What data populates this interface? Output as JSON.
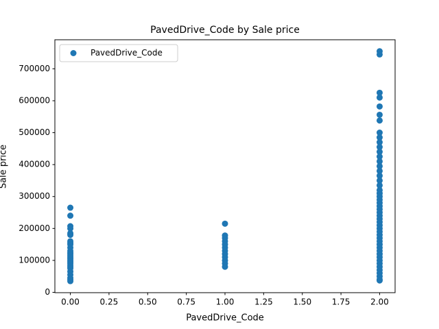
{
  "chart_data": {
    "type": "scatter",
    "title": "PavedDrive_Code by Sale price",
    "xlabel": "PavedDrive_Code",
    "ylabel": "Sale price",
    "legend": "upper left",
    "xlim": [
      -0.1,
      2.1
    ],
    "ylim": [
      -1100,
      791000
    ],
    "xticks": [
      {
        "value": 0,
        "label": "0.00"
      },
      {
        "value": 0.25,
        "label": "0.25"
      },
      {
        "value": 0.5,
        "label": "0.50"
      },
      {
        "value": 0.75,
        "label": "0.75"
      },
      {
        "value": 1,
        "label": "1.00"
      },
      {
        "value": 1.25,
        "label": "1.25"
      },
      {
        "value": 1.5,
        "label": "1.50"
      },
      {
        "value": 1.75,
        "label": "1.75"
      },
      {
        "value": 2,
        "label": "2.00"
      }
    ],
    "yticks": [
      0,
      100000,
      200000,
      300000,
      400000,
      500000,
      600000,
      700000
    ],
    "series": [
      {
        "name": "PavedDrive_Code",
        "color": "#1f77b4",
        "x": [
          0,
          0,
          0,
          0,
          0,
          0,
          0,
          0,
          0,
          0,
          0,
          0,
          0,
          0,
          0,
          0,
          0,
          0,
          0,
          0,
          0,
          0,
          0,
          0,
          0,
          0,
          0,
          1,
          1,
          1,
          1,
          1,
          1,
          1,
          1,
          1,
          1,
          1,
          1,
          2,
          2,
          2,
          2,
          2,
          2,
          2,
          2,
          2,
          2,
          2,
          2,
          2,
          2,
          2,
          2,
          2,
          2,
          2,
          2,
          2,
          2,
          2,
          2,
          2,
          2,
          2,
          2,
          2,
          2,
          2,
          2,
          2,
          2,
          2,
          2,
          2,
          2,
          2,
          2,
          2,
          2,
          2,
          2,
          2,
          2,
          2,
          2,
          2
        ],
        "values": [
          265000,
          240000,
          207000,
          200000,
          185000,
          180000,
          160000,
          155000,
          150000,
          140000,
          130000,
          125000,
          120000,
          115000,
          110000,
          105000,
          100000,
          95000,
          90000,
          85000,
          80000,
          75000,
          65000,
          55000,
          45000,
          40000,
          35000,
          215000,
          178000,
          170000,
          160000,
          150000,
          140000,
          130000,
          120000,
          110000,
          100000,
          90000,
          80000,
          755000,
          745000,
          625000,
          610000,
          582000,
          556000,
          538000,
          500000,
          485000,
          470000,
          455000,
          440000,
          425000,
          410000,
          395000,
          380000,
          365000,
          350000,
          335000,
          320000,
          310000,
          300000,
          290000,
          280000,
          270000,
          260000,
          250000,
          240000,
          230000,
          220000,
          210000,
          200000,
          190000,
          180000,
          170000,
          160000,
          150000,
          140000,
          130000,
          120000,
          110000,
          100000,
          90000,
          80000,
          70000,
          60000,
          50000,
          40000,
          37000
        ]
      }
    ]
  }
}
